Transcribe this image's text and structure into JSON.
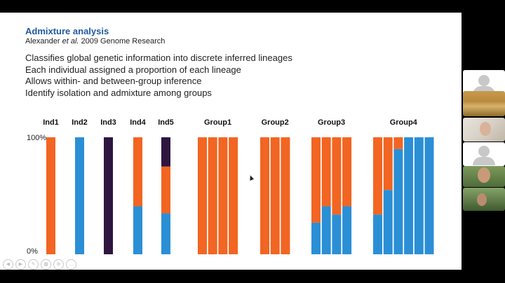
{
  "slide": {
    "title": "Admixture analysis",
    "citation": {
      "prefix": "Alexander ",
      "italic": "et al.",
      "suffix": " 2009 Genome Research"
    },
    "bullets": [
      "Classifies global genetic information into discrete inferred lineages",
      "Each individual assigned a proportion of each lineage",
      "Allows within- and between-group inference",
      "Identify isolation and admixture among groups"
    ]
  },
  "chart_data": {
    "type": "bar",
    "stacked": true,
    "y_ticks": [
      "100%",
      "0%"
    ],
    "ylim": [
      0,
      100
    ],
    "series_colors": {
      "orange": "#f26522",
      "blue": "#2b8fd6",
      "purple": "#2e1640"
    },
    "groups": [
      {
        "label": "Ind1",
        "bars": [
          {
            "orange": 100
          }
        ]
      },
      {
        "label": "Ind2",
        "bars": [
          {
            "blue": 100
          }
        ]
      },
      {
        "label": "Ind3",
        "bars": [
          {
            "purple": 100
          }
        ]
      },
      {
        "label": "Ind4",
        "bars": [
          {
            "blue": 41,
            "orange": 59
          }
        ]
      },
      {
        "label": "Ind5",
        "bars": [
          {
            "blue": 35,
            "orange": 40,
            "purple": 25
          }
        ]
      },
      {
        "label": "Group1",
        "bars": [
          {
            "orange": 100
          },
          {
            "orange": 100
          },
          {
            "orange": 100
          },
          {
            "orange": 100
          }
        ]
      },
      {
        "label": "Group2",
        "bars": [
          {
            "orange": 100
          },
          {
            "orange": 100
          },
          {
            "orange": 100
          }
        ]
      },
      {
        "label": "Group3",
        "bars": [
          {
            "blue": 27,
            "orange": 73
          },
          {
            "blue": 41,
            "orange": 59
          },
          {
            "blue": 34,
            "orange": 66
          },
          {
            "blue": 41,
            "orange": 59
          }
        ]
      },
      {
        "label": "Group4",
        "bars": [
          {
            "blue": 34,
            "orange": 66
          },
          {
            "blue": 55,
            "orange": 45
          },
          {
            "blue": 90,
            "orange": 10
          },
          {
            "blue": 100
          },
          {
            "blue": 100
          },
          {
            "blue": 100
          }
        ]
      }
    ]
  },
  "toolbar": {
    "buttons": [
      {
        "name": "previous-slide-button",
        "glyph": "◀"
      },
      {
        "name": "next-slide-button",
        "glyph": "▶"
      },
      {
        "name": "pen-tool-button",
        "glyph": "✎"
      },
      {
        "name": "see-all-slides-button",
        "glyph": "▦"
      },
      {
        "name": "zoom-button",
        "glyph": "⊕"
      },
      {
        "name": "more-options-button",
        "glyph": "…"
      }
    ]
  },
  "participants": [
    {
      "name": "participant-placeholder-1",
      "kind": "placeholder"
    },
    {
      "name": "participant-shared-map",
      "kind": "image"
    },
    {
      "name": "participant-video-1",
      "kind": "image"
    },
    {
      "name": "participant-placeholder-2",
      "kind": "placeholder"
    },
    {
      "name": "participant-video-2",
      "kind": "image"
    },
    {
      "name": "participant-video-3",
      "kind": "image"
    }
  ]
}
